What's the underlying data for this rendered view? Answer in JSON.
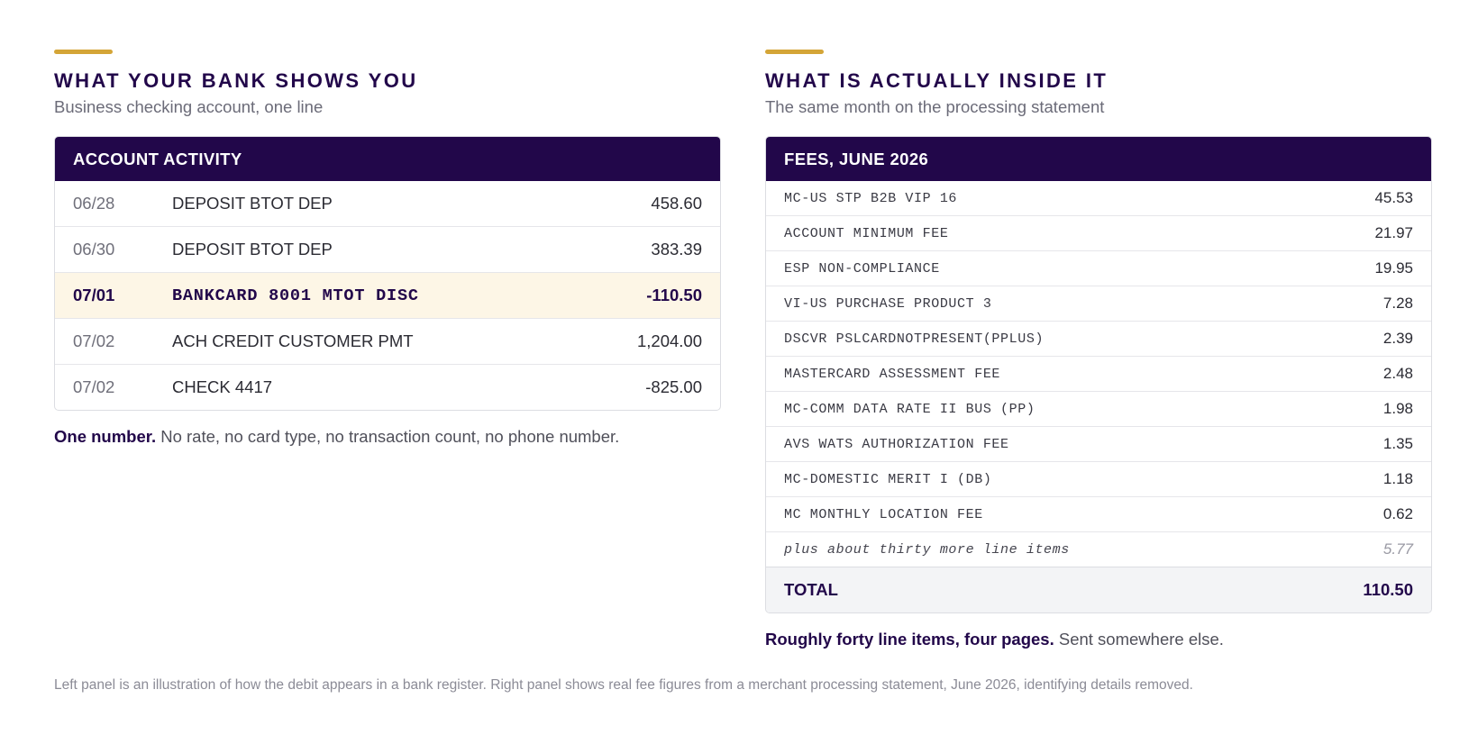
{
  "left": {
    "title": "WHAT YOUR BANK SHOWS YOU",
    "subtitle": "Business checking account, one line",
    "table_header": "ACCOUNT ACTIVITY",
    "rows": [
      {
        "date": "06/28",
        "desc": "DEPOSIT BTOT DEP",
        "amount": "458.60"
      },
      {
        "date": "06/30",
        "desc": "DEPOSIT BTOT DEP",
        "amount": "383.39"
      },
      {
        "date": "07/01",
        "desc": "BANKCARD 8001 MTOT DISC",
        "amount": "-110.50"
      },
      {
        "date": "07/02",
        "desc": "ACH CREDIT CUSTOMER PMT",
        "amount": "1,204.00"
      },
      {
        "date": "07/02",
        "desc": "CHECK 4417",
        "amount": "-825.00"
      }
    ],
    "note_bold": "One number.",
    "note_text": " No rate, no card type, no transaction count, no phone number."
  },
  "right": {
    "title": "WHAT IS ACTUALLY INSIDE IT",
    "subtitle": "The same month on the processing statement",
    "table_header": "FEES, JUNE 2026",
    "rows": [
      {
        "name": "MC-US STP B2B VIP 16",
        "amount": "45.53"
      },
      {
        "name": "ACCOUNT MINIMUM FEE",
        "amount": "21.97"
      },
      {
        "name": "ESP NON-COMPLIANCE",
        "amount": "19.95"
      },
      {
        "name": "VI-US PURCHASE PRODUCT 3",
        "amount": "7.28"
      },
      {
        "name": "DSCVR PSLCARDNOTPRESENT(PPLUS)",
        "amount": "2.39"
      },
      {
        "name": "MASTERCARD ASSESSMENT FEE",
        "amount": "2.48"
      },
      {
        "name": "MC-COMM DATA RATE II BUS (PP)",
        "amount": "1.98"
      },
      {
        "name": "AVS WATS AUTHORIZATION FEE",
        "amount": "1.35"
      },
      {
        "name": "MC-DOMESTIC MERIT I (DB)",
        "amount": "1.18"
      },
      {
        "name": "MC MONTHLY LOCATION FEE",
        "amount": "0.62"
      }
    ],
    "more_label": "plus about thirty more line items",
    "more_amount": "5.77",
    "total_label": "TOTAL",
    "total_amount": "110.50",
    "note_bold": "Roughly forty line items, four pages.",
    "note_text": " Sent somewhere else."
  },
  "footnote": "Left panel is an illustration of how the debit appears in a bank register. Right panel shows real fee figures from a merchant processing statement, June 2026, identifying details removed.",
  "colors": {
    "accent": "#d4a537",
    "header_bg": "#22074a",
    "highlight_bg": "#fdf6e6"
  }
}
